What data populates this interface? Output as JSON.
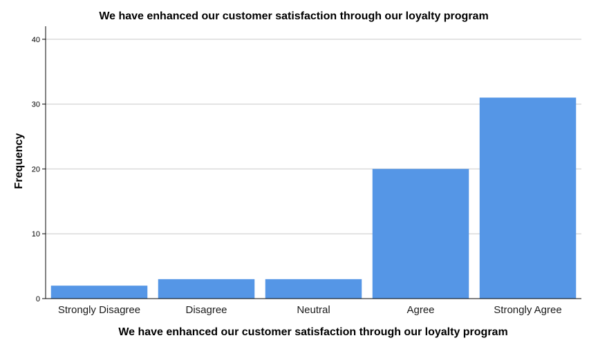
{
  "chart_data": {
    "type": "bar",
    "title": "We have enhanced our customer satisfaction through our loyalty program",
    "xlabel": "We have enhanced our customer satisfaction through our loyalty program",
    "ylabel": "Frequency",
    "categories": [
      "Strongly Disagree",
      "Disagree",
      "Neutral",
      "Agree",
      "Strongly Agree"
    ],
    "values": [
      2,
      3,
      3,
      20,
      31
    ],
    "ylim": [
      0,
      42
    ],
    "yticks": [
      0,
      10,
      20,
      30,
      40
    ],
    "grid": true,
    "bar_color": "#5596e6",
    "gridline_color": "#c8c8c8"
  }
}
